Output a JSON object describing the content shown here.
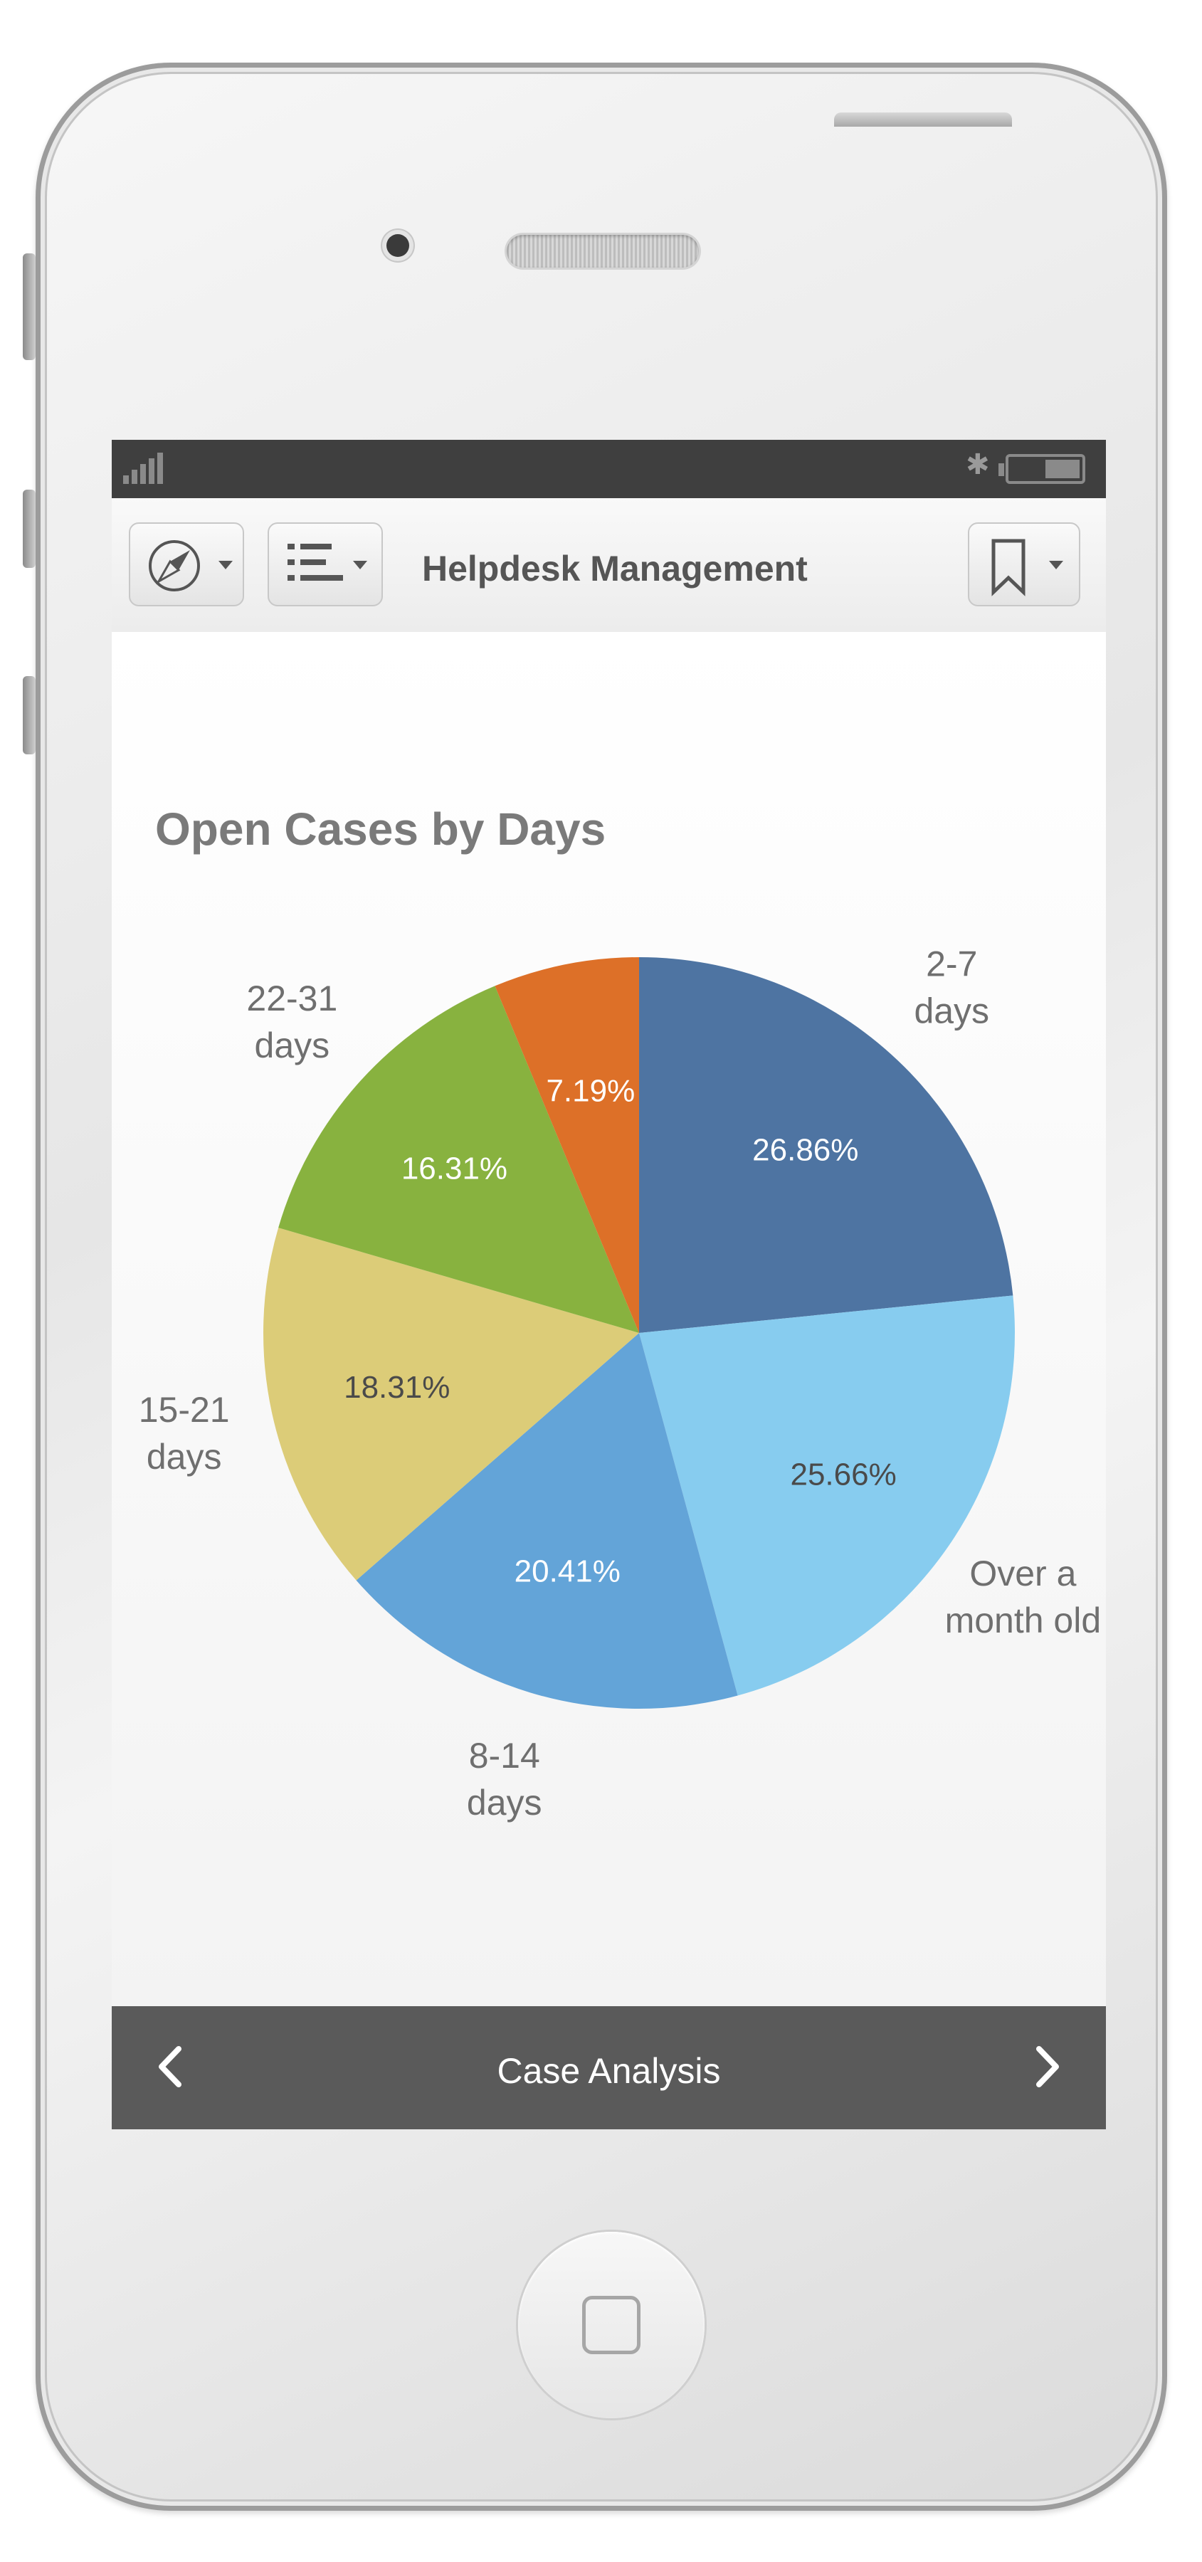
{
  "app": {
    "title": "Helpdesk Management"
  },
  "icons": {
    "status_signal": "signal-bars-icon",
    "status_bluetooth": "bluetooth-icon",
    "status_battery": "battery-icon",
    "nav_compass": "compass-icon",
    "nav_list": "list-icon",
    "nav_bookmark": "bookmark-icon",
    "dropdown": "caret-down-icon",
    "prev": "chevron-left-icon",
    "next": "chevron-right-icon",
    "home": "home-button-icon"
  },
  "status_bar": {
    "bluetooth_glyph": "✱"
  },
  "bottom_nav": {
    "label": "Case Analysis"
  },
  "chart_data": {
    "type": "pie",
    "title": "Open Cases by Days",
    "start_angle_deg": 0,
    "direction": "clockwise",
    "slices": [
      {
        "label": "2-7 days",
        "label_lines": [
          "2-7",
          "days"
        ],
        "value": 26.86,
        "value_label": "26.86%",
        "color": "#4e74a2",
        "value_text_color": "#ffffff"
      },
      {
        "label": "Over a month old",
        "label_lines": [
          "Over a",
          "month old"
        ],
        "value": 25.66,
        "value_label": "25.66%",
        "color": "#87ccef",
        "value_text_color": "#4a4a4a"
      },
      {
        "label": "8-14 days",
        "label_lines": [
          "8-14",
          "days"
        ],
        "value": 20.41,
        "value_label": "20.41%",
        "color": "#63a4d8",
        "value_text_color": "#ffffff"
      },
      {
        "label": "15-21 days",
        "label_lines": [
          "15-21",
          "days"
        ],
        "value": 18.31,
        "value_label": "18.31%",
        "color": "#dccc78",
        "value_text_color": "#4a4a4a"
      },
      {
        "label": "22-31 days",
        "label_lines": [
          "22-31",
          "days"
        ],
        "value": 16.31,
        "value_label": "16.31%",
        "color": "#88b23f",
        "value_text_color": "#ffffff"
      },
      {
        "label": "",
        "label_lines": [],
        "value": 7.19,
        "value_label": "7.19%",
        "color": "#dd7028",
        "value_text_color": "#ffffff"
      }
    ],
    "legend": "none",
    "category_label_color": "#6f6f6f"
  }
}
